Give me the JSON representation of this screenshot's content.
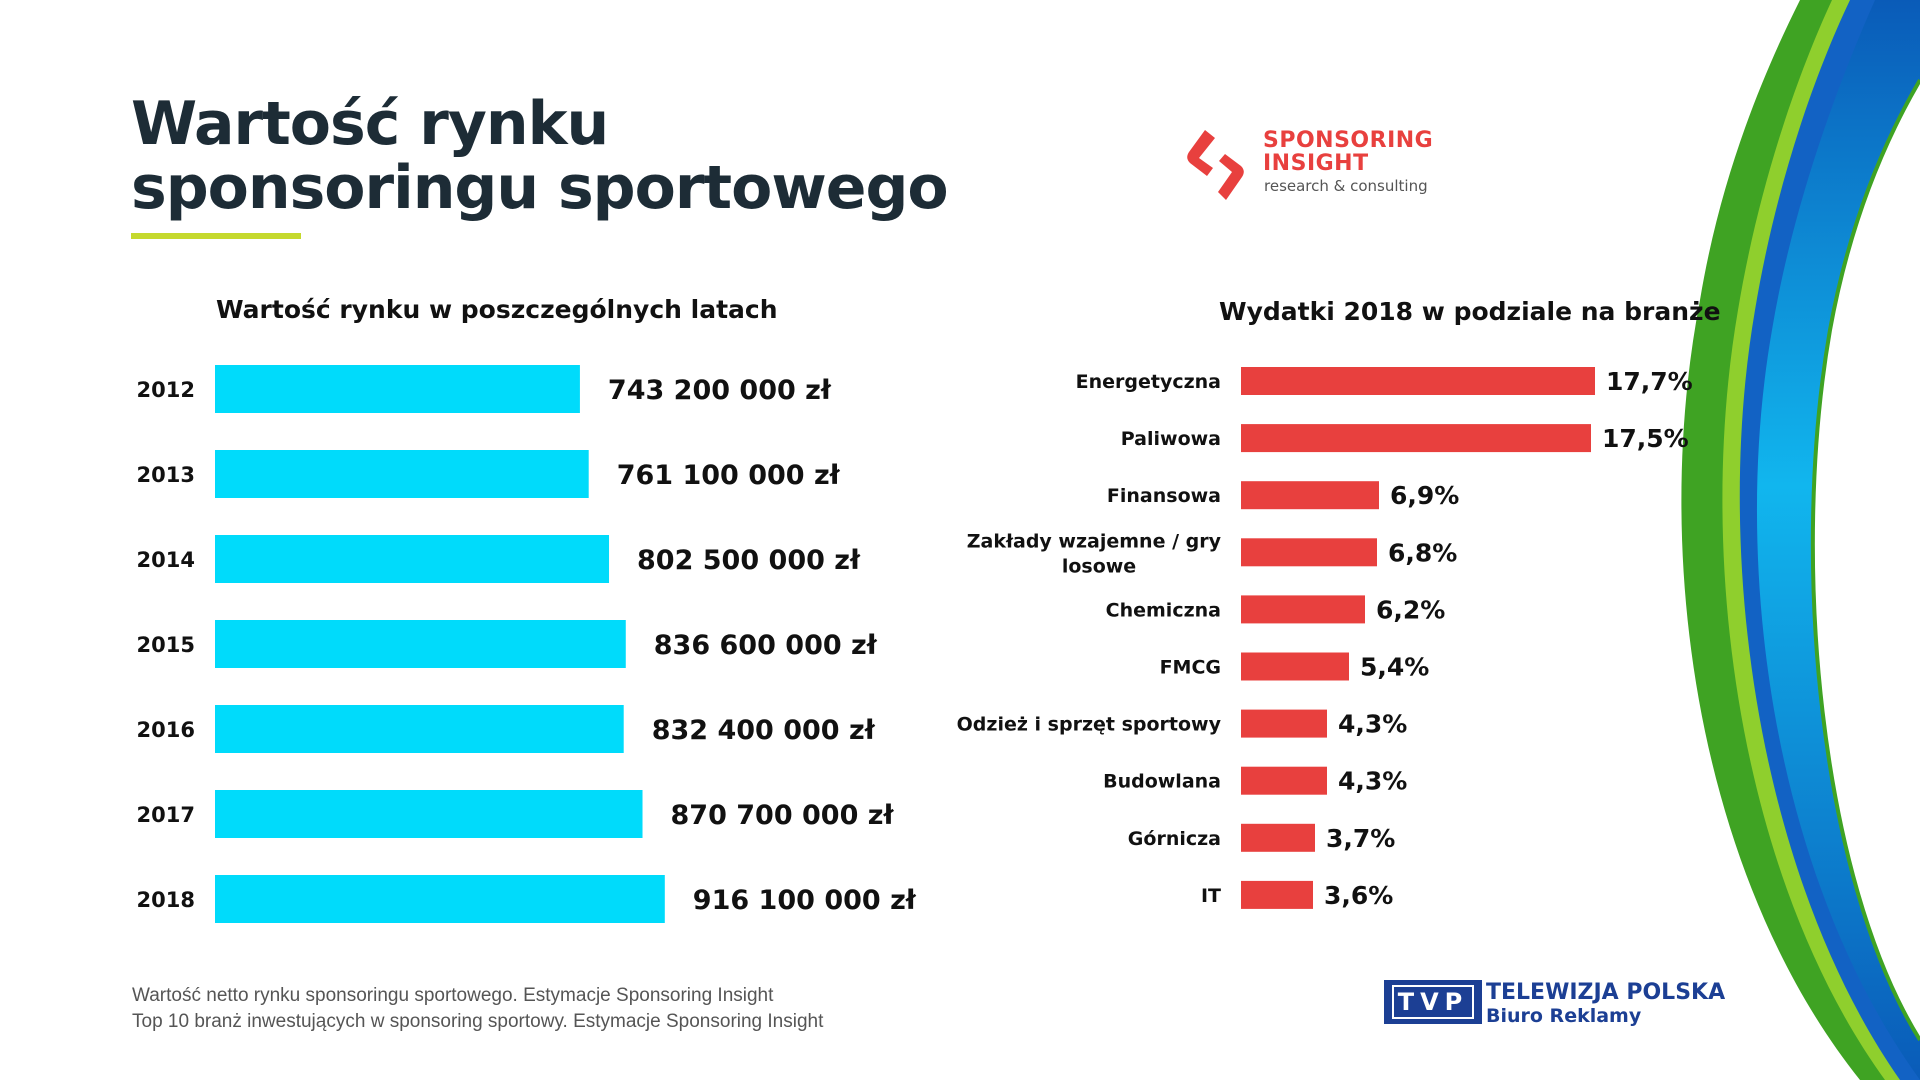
{
  "title": {
    "line1": "Wartość rynku",
    "line2": "sponsoringu sportowego"
  },
  "colors": {
    "accent_underline": "#c5d92d",
    "left_bars": "#00dbfb",
    "right_bars": "#e8403e",
    "title": "#1d2c36",
    "tvp_blue": "#1c3f94"
  },
  "sponsor_logo": {
    "line1": "SPONSORING",
    "line2": "INSIGHT",
    "subtitle": "research & consulting",
    "icon": "sponsoring-insight-logo-icon"
  },
  "footnotes": [
    "Wartość netto rynku sponsoringu sportowego. Estymacje Sponsoring Insight",
    "Top 10 branż inwestujących w sponsoring sportowy. Estymacje Sponsoring Insight"
  ],
  "tvp_logo": {
    "box": "TVP",
    "line1": "TELEWIZJA POLSKA",
    "line2": "Biuro Reklamy"
  },
  "chart_data": [
    {
      "type": "bar",
      "orientation": "horizontal",
      "title": "Wartość rynku w poszczególnych latach",
      "categories": [
        "2012",
        "2013",
        "2014",
        "2015",
        "2016",
        "2017",
        "2018"
      ],
      "values": [
        743200000,
        761100000,
        802500000,
        836600000,
        832400000,
        870700000,
        916100000
      ],
      "labels": [
        "743 200 000 zł",
        "761 100 000 zł",
        "802 500 000 zł",
        "836 600 000 zł",
        "832 400 000 zł",
        "870 700 000 zł",
        "916 100 000 zł"
      ],
      "xlim": [
        0,
        1000000000
      ],
      "xlabel": "",
      "ylabel": "",
      "grid": false
    },
    {
      "type": "bar",
      "orientation": "horizontal",
      "title": "Wydatki 2018 w podziale na branże",
      "categories": [
        "Energetyczna",
        "Paliwowa",
        "Finansowa",
        "Zakłady wzajemne / gry losowe",
        "Chemiczna",
        "FMCG",
        "Odzież i sprzęt sportowy",
        "Budowlana",
        "Górnicza",
        "IT"
      ],
      "category_lines": [
        [
          "Energetyczna"
        ],
        [
          "Paliwowa"
        ],
        [
          "Finansowa"
        ],
        [
          "Zakłady wzajemne / gry",
          "losowe"
        ],
        [
          "Chemiczna"
        ],
        [
          "FMCG"
        ],
        [
          "Odzież i sprzęt sportowy"
        ],
        [
          "Budowlana"
        ],
        [
          "Górnicza"
        ],
        [
          "IT"
        ]
      ],
      "values": [
        17.7,
        17.5,
        6.9,
        6.8,
        6.2,
        5.4,
        4.3,
        4.3,
        3.7,
        3.6
      ],
      "labels": [
        "17,7%",
        "17,5%",
        "6,9%",
        "6,8%",
        "6,2%",
        "5,4%",
        "4,3%",
        "4,3%",
        "3,7%",
        "3,6%"
      ],
      "xlim": [
        0,
        17.7
      ],
      "xlabel": "",
      "ylabel": "",
      "grid": false
    }
  ]
}
